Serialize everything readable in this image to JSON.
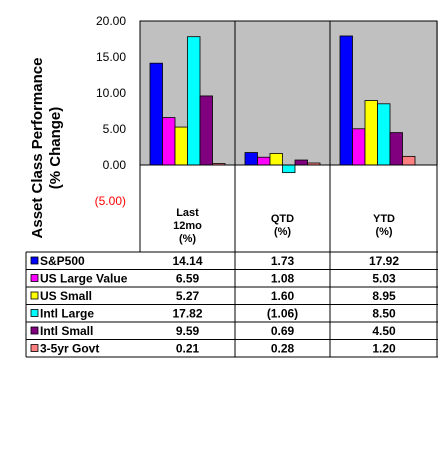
{
  "chart_data": {
    "type": "bar",
    "ylabel_line1": "Asset Class Performance",
    "ylabel_line2": "(% Change)",
    "ylim": [
      -5,
      20
    ],
    "yticks": [
      "(5.00)",
      "0.00",
      "5.00",
      "10.00",
      "15.00",
      "20.00"
    ],
    "categories": [
      {
        "lines": [
          "Last",
          "12mo",
          "(%)"
        ]
      },
      {
        "lines": [
          "QTD",
          "(%)"
        ]
      },
      {
        "lines": [
          "YTD",
          "(%)"
        ]
      }
    ],
    "series": [
      {
        "name": "S&P500",
        "color": "#0000FF",
        "values": [
          14.14,
          1.73,
          17.92
        ],
        "display": [
          "14.14",
          "1.73",
          "17.92"
        ]
      },
      {
        "name": "US Large Value",
        "color": "#FF00FF",
        "values": [
          6.59,
          1.08,
          5.03
        ],
        "display": [
          "6.59",
          "1.08",
          "5.03"
        ]
      },
      {
        "name": "US Small",
        "color": "#FFFF00",
        "values": [
          5.27,
          1.6,
          8.95
        ],
        "display": [
          "5.27",
          "1.60",
          "8.95"
        ]
      },
      {
        "name": "Intl Large",
        "color": "#00FFFF",
        "values": [
          17.82,
          -1.06,
          8.5
        ],
        "display": [
          "17.82",
          "(1.06)",
          "8.50"
        ]
      },
      {
        "name": "Intl Small",
        "color": "#800080",
        "values": [
          9.59,
          0.69,
          4.5
        ],
        "display": [
          "9.59",
          "0.69",
          "4.50"
        ]
      },
      {
        "name": "3-5yr Govt",
        "color": "#FF8080",
        "values": [
          0.21,
          0.28,
          1.2
        ],
        "display": [
          "0.21",
          "0.28",
          "1.20"
        ]
      }
    ],
    "plot_background": "#C0C0C0",
    "negative_tick_color": "#FF0000",
    "grid": false
  }
}
